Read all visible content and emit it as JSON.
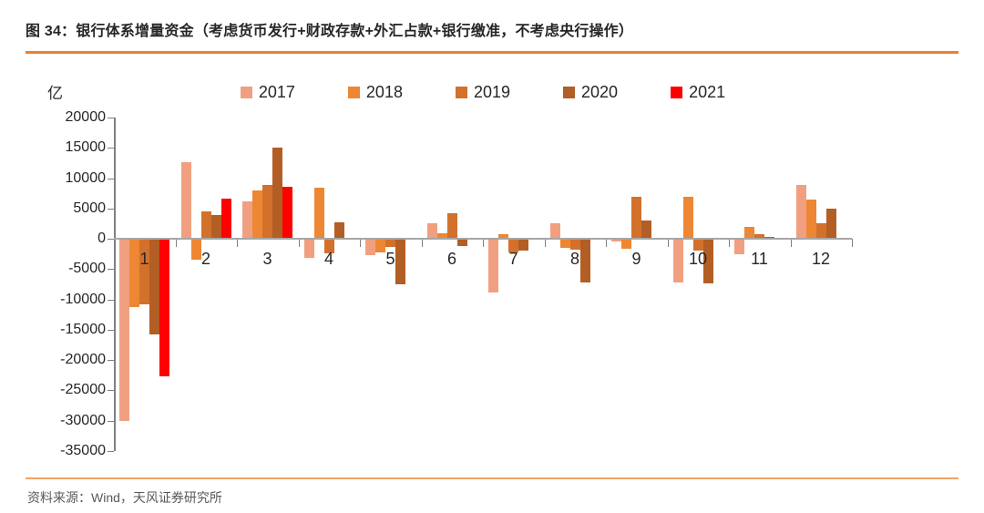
{
  "header": {
    "title": "图 34：银行体系增量资金（考虑货币发行+财政存款+外汇占款+银行缴准，不考虑央行操作）"
  },
  "footer": {
    "source": "资料来源：Wind，天风证券研究所"
  },
  "chart_data": {
    "type": "bar",
    "title": "银行体系增量资金（考虑货币发行+财政存款+外汇占款+银行缴准，不考虑央行操作）",
    "unit_label": "亿",
    "xlabel": "",
    "ylabel": "亿",
    "categories": [
      "1",
      "2",
      "3",
      "4",
      "5",
      "6",
      "7",
      "8",
      "9",
      "10",
      "11",
      "12"
    ],
    "series": [
      {
        "name": "2017",
        "color": "#F0A080",
        "values": [
          -30000,
          12600,
          6200,
          -3200,
          -2700,
          2600,
          -8900,
          2500,
          -500,
          -7200,
          -2500,
          8900
        ]
      },
      {
        "name": "2018",
        "color": "#ED8733",
        "values": [
          -11200,
          -3500,
          8000,
          8400,
          -2300,
          900,
          800,
          -1500,
          -1700,
          6900,
          2000,
          6500
        ]
      },
      {
        "name": "2019",
        "color": "#D2712C",
        "values": [
          -10800,
          4500,
          8900,
          -2400,
          -1300,
          4200,
          -2200,
          -1800,
          6900,
          -1900,
          800,
          2600
        ]
      },
      {
        "name": "2020",
        "color": "#B25E24",
        "values": [
          -15700,
          3900,
          15100,
          2700,
          -7500,
          -1200,
          -2000,
          -7200,
          3000,
          -7300,
          300,
          5000
        ]
      },
      {
        "name": "2021",
        "color": "#FF0000",
        "values": [
          -22700,
          6700,
          8600,
          null,
          null,
          null,
          null,
          null,
          null,
          null,
          null,
          null
        ]
      }
    ],
    "ylim": [
      -35000,
      20000
    ],
    "ytick_step": 5000,
    "ytick_labels": [
      "20000",
      "15000",
      "10000",
      "5000",
      "0",
      "-5000",
      "-10000",
      "-15000",
      "-20000",
      "-25000",
      "-30000",
      "-35000"
    ],
    "legend_position": "top",
    "grid": false
  },
  "colors": {
    "rule_top": "#EE7F2D",
    "rule_bottom": "#F2A266",
    "axis": "#7f7f7f",
    "zero_line": "#a6a6a6",
    "text": "#262626",
    "source_text": "#595959"
  }
}
